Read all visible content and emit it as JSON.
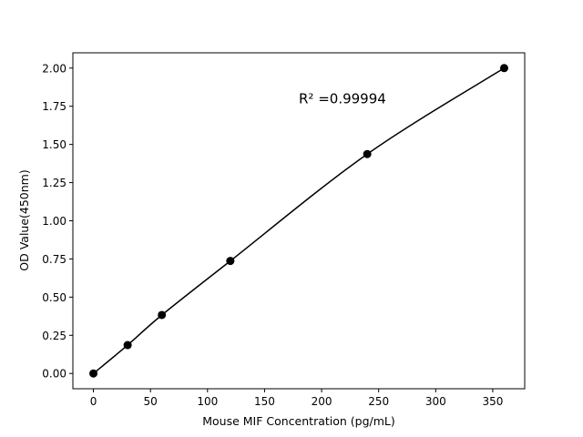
{
  "chart_data": {
    "type": "scatter",
    "xlabel": "Mouse MIF Concentration (pg/mL)",
    "ylabel": "OD Value(450nm)",
    "xlim": [
      -18,
      378
    ],
    "ylim": [
      -0.1,
      2.1
    ],
    "xticks": [
      0,
      50,
      100,
      150,
      200,
      250,
      300,
      350
    ],
    "yticks": [
      "0.00",
      "0.25",
      "0.50",
      "0.75",
      "1.00",
      "1.25",
      "1.50",
      "1.75",
      "2.00"
    ],
    "grid": false,
    "x": [
      0,
      30,
      60,
      120,
      240,
      360
    ],
    "y": [
      0.0,
      0.186,
      0.383,
      0.737,
      1.437,
      2.0
    ],
    "fit_line": true,
    "color": "#000000",
    "annotation": {
      "text": "R² =0.99994",
      "x": 180,
      "y": 1.8
    }
  }
}
